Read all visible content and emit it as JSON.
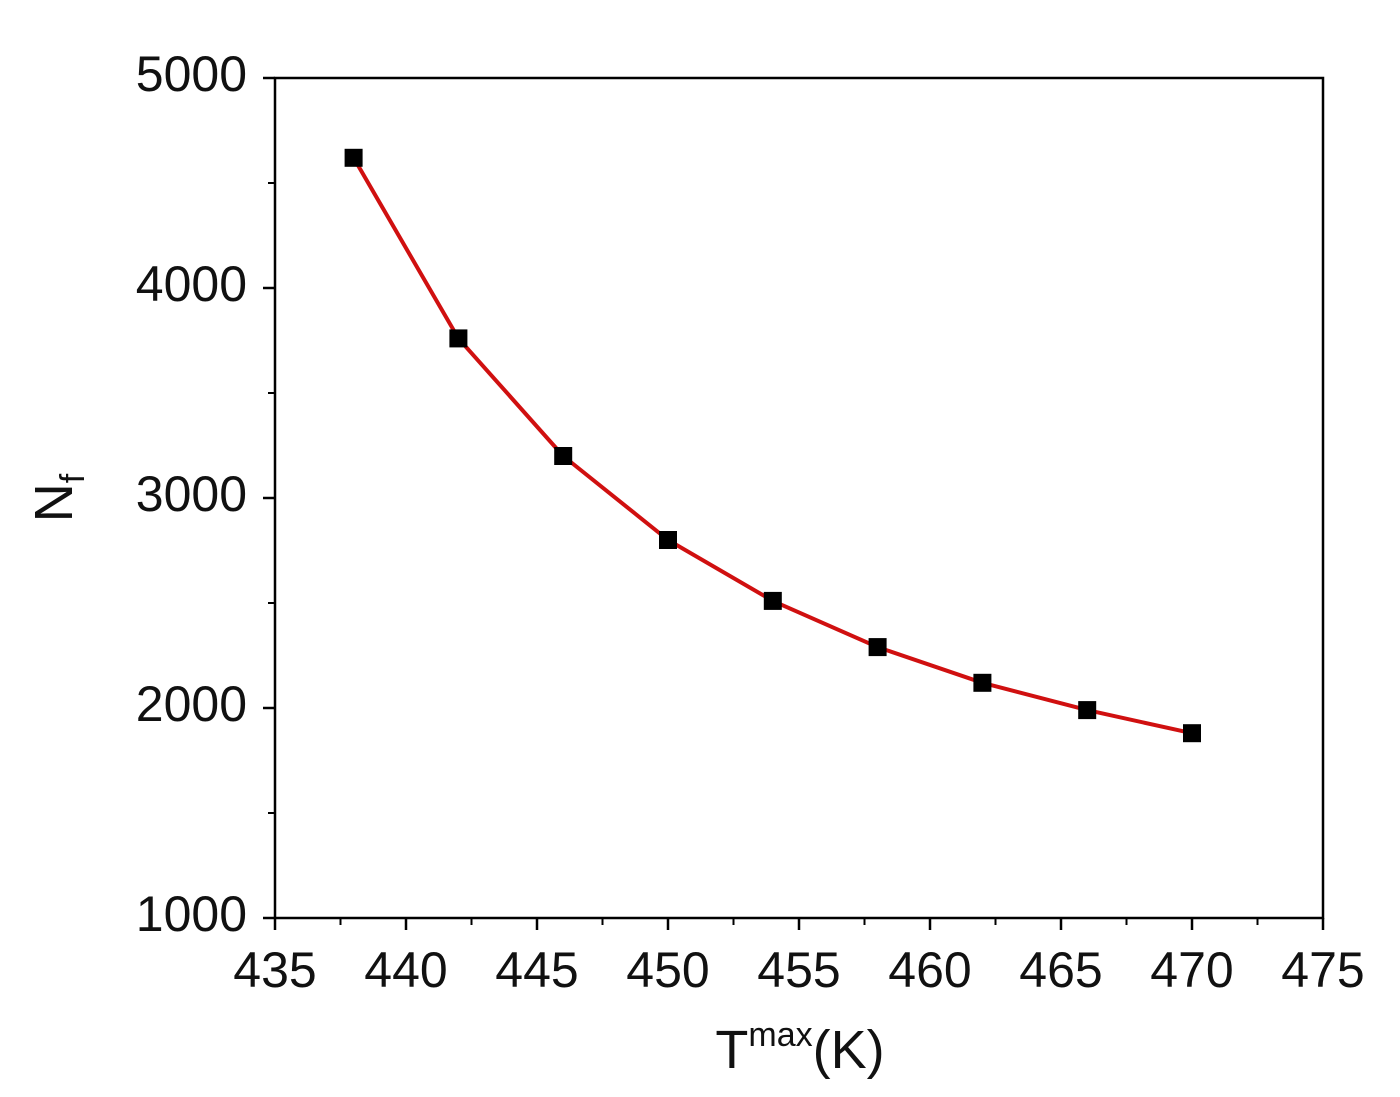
{
  "chart_data": {
    "type": "line",
    "xlabel": {
      "text": "T",
      "superscript": "max",
      "suffix": "(K)"
    },
    "ylabel": {
      "text": "N",
      "subscript": "f"
    },
    "x": [
      438,
      442,
      446,
      450,
      454,
      458,
      462,
      466,
      470
    ],
    "series": [
      {
        "color": "#d01010",
        "marker_color": "#000000",
        "values": [
          4620,
          3760,
          3200,
          2800,
          2510,
          2290,
          2120,
          1990,
          1880
        ]
      }
    ],
    "xlim": [
      435,
      475
    ],
    "xticks": [
      435,
      440,
      445,
      450,
      455,
      460,
      465,
      470,
      475
    ],
    "xminorticks": [
      437.5,
      442.5,
      447.5,
      452.5,
      457.5,
      462.5,
      467.5,
      472.5
    ],
    "ylim": [
      1000,
      5000
    ],
    "yticks": [
      1000,
      2000,
      3000,
      4000,
      5000
    ],
    "yminorticks": [
      1500,
      2500,
      3500,
      4500
    ],
    "grid": false
  }
}
